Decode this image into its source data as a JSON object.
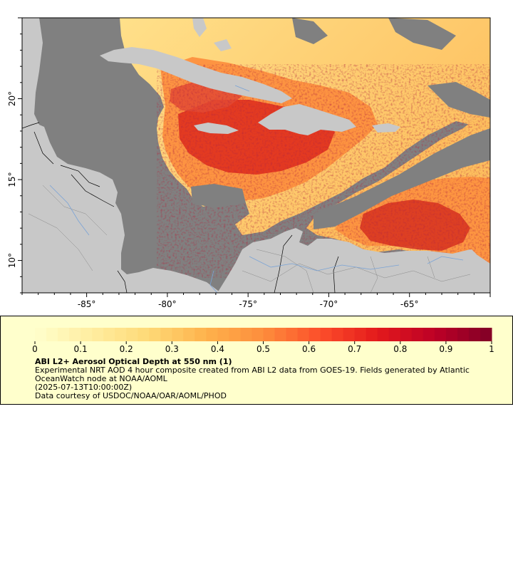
{
  "map": {
    "lon_ticks": [
      "-85°",
      "-80°",
      "-75°",
      "-70°",
      "-65°"
    ],
    "lat_ticks": [
      "20°",
      "15°",
      "10°"
    ],
    "extent": {
      "lon_min": -89,
      "lon_max": -60,
      "lat_min": 8,
      "lat_max": 25
    },
    "colors": {
      "ocean": "#808080",
      "land": "#c8c8c8",
      "border": "#000000",
      "river": "#7aa3d6"
    }
  },
  "legend": {
    "ticks": [
      "0",
      "0.1",
      "0.2",
      "0.3",
      "0.4",
      "0.5",
      "0.6",
      "0.7",
      "0.8",
      "0.9",
      "1"
    ],
    "colorbar": {
      "min": 0,
      "max": 1,
      "colors": [
        "#ffffcc",
        "#ffeda0",
        "#fed976",
        "#feb24c",
        "#fd8d3c",
        "#fc4e2a",
        "#e31a1c",
        "#bd0026",
        "#800026"
      ]
    },
    "title": "ABI L2+ Aerosol Optical Depth at 550 nm (1)",
    "line1": "Experimental NRT AOD 4 hour composite created from ABI L2 data from GOES-19. Fields generated by Atlantic OceanWatch node at NOAA/AOML",
    "line2": "(2025-07-13T10:00:00Z)",
    "line3": "Data courtesy of USDOC/NOAA/OAR/AOML/PHOD"
  }
}
